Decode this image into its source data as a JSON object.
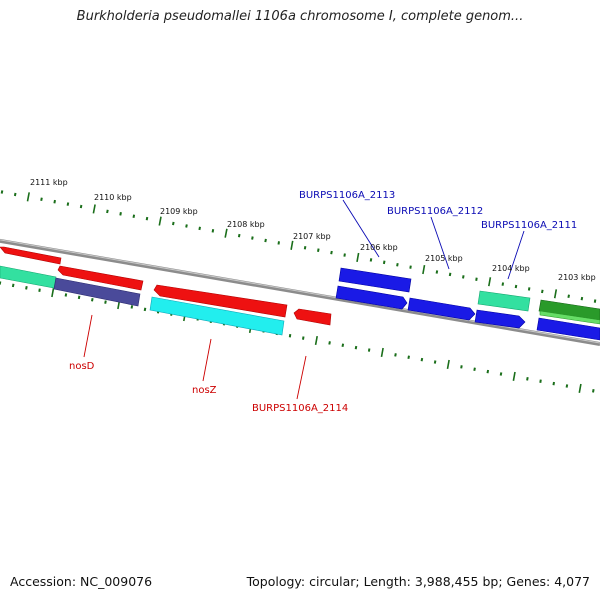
{
  "title": "Burkholderia pseudomallei 1106a chromosome I, complete genom...",
  "footer": {
    "accession": "Accession: NC_009076",
    "summary": "Topology: circular; Length: 3,988,455 bp; Genes: 4,077"
  },
  "colors": {
    "backbone": "#8c8c8c",
    "ticks": "#1a6e1a",
    "forward_label": "#0a0ab4",
    "reverse_label": "#cc0000"
  },
  "scale_labels": [
    "2111 kbp",
    "2110 kbp",
    "2109 kbp",
    "2108 kbp",
    "2107 kbp",
    "2106 kbp",
    "2105 kbp",
    "2104 kbp",
    "2103 kbp"
  ],
  "gene_labels": {
    "forward": [
      "BURPS1106A_2113",
      "BURPS1106A_2112",
      "BURPS1106A_2111"
    ],
    "reverse": [
      "nosD",
      "nosZ",
      "BURPS1106A_2114"
    ]
  }
}
